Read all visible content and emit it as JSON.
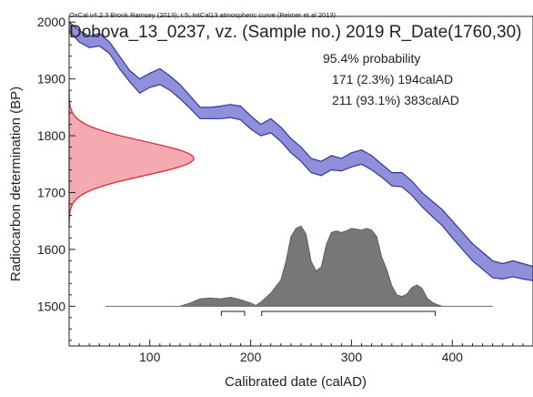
{
  "header_note": "OxCal v4.2.3 Bronk Ramsey (2013); r:5; IntCal13 atmospheric curve (Reimer et al 2013)",
  "title": "Dobova_13_0237, vz. (Sample no.) 2019 R_Date(1760,30)",
  "probability": {
    "heading": "95.4% probability",
    "ranges": [
      "171 (2.3%) 194calAD",
      "211 (93.1%) 383calAD"
    ]
  },
  "colors": {
    "curve_fill": "#8f8fdc",
    "curve_line": "#2b3a9a",
    "radiocarbon_fill": "#f4aab0",
    "radiocarbon_line": "#e0202a",
    "calibrated_fill": "#777777",
    "calibrated_line": "#555555"
  },
  "chart_data": {
    "type": "area",
    "xlabel": "Calibrated date (calAD)",
    "ylabel": "Radiocarbon determination (BP)",
    "xlim": [
      20,
      480
    ],
    "ylim": [
      1430,
      2010
    ],
    "x_ticks": [
      100,
      200,
      300,
      400
    ],
    "y_ticks": [
      1500,
      1600,
      1700,
      1800,
      1900,
      2000
    ],
    "calibration_curve": {
      "x": [
        20,
        30,
        40,
        50,
        60,
        70,
        80,
        90,
        100,
        110,
        120,
        130,
        140,
        150,
        160,
        170,
        180,
        190,
        200,
        210,
        220,
        230,
        240,
        250,
        260,
        270,
        280,
        290,
        300,
        310,
        320,
        330,
        340,
        350,
        360,
        370,
        380,
        390,
        400,
        410,
        420,
        430,
        440,
        450,
        460,
        470,
        480
      ],
      "upper": [
        2000,
        1985,
        1975,
        1980,
        1965,
        1940,
        1915,
        1900,
        1910,
        1918,
        1905,
        1890,
        1870,
        1850,
        1850,
        1852,
        1855,
        1852,
        1835,
        1820,
        1830,
        1815,
        1795,
        1780,
        1760,
        1755,
        1765,
        1760,
        1770,
        1775,
        1765,
        1750,
        1735,
        1735,
        1720,
        1700,
        1685,
        1670,
        1650,
        1630,
        1610,
        1595,
        1580,
        1575,
        1580,
        1575,
        1570
      ],
      "lower": [
        1985,
        1965,
        1955,
        1958,
        1945,
        1918,
        1895,
        1875,
        1885,
        1890,
        1880,
        1865,
        1848,
        1830,
        1830,
        1830,
        1832,
        1828,
        1812,
        1800,
        1805,
        1790,
        1770,
        1755,
        1735,
        1730,
        1740,
        1738,
        1745,
        1750,
        1740,
        1727,
        1712,
        1710,
        1695,
        1675,
        1658,
        1642,
        1620,
        1600,
        1580,
        1565,
        1550,
        1548,
        1552,
        1548,
        1545
      ]
    },
    "radiocarbon_date": {
      "mean": 1760,
      "sd": 30
    },
    "calibrated_distribution": {
      "x": [
        56,
        100,
        130,
        140,
        150,
        160,
        170,
        180,
        190,
        200,
        205,
        210,
        220,
        230,
        235,
        240,
        245,
        250,
        255,
        260,
        265,
        270,
        275,
        280,
        285,
        290,
        295,
        300,
        305,
        310,
        315,
        320,
        325,
        330,
        335,
        340,
        345,
        350,
        355,
        360,
        365,
        370,
        375,
        380,
        385,
        390,
        400,
        440
      ],
      "density": [
        0,
        0,
        0,
        0.04,
        0.09,
        0.1,
        0.09,
        0.11,
        0.08,
        0.04,
        0.01,
        0.05,
        0.16,
        0.32,
        0.55,
        0.85,
        0.95,
        0.98,
        0.88,
        0.55,
        0.43,
        0.48,
        0.75,
        0.9,
        0.92,
        0.9,
        0.92,
        0.95,
        0.94,
        0.93,
        0.95,
        0.93,
        0.85,
        0.6,
        0.45,
        0.25,
        0.14,
        0.12,
        0.15,
        0.23,
        0.26,
        0.22,
        0.1,
        0.05,
        0.02,
        0,
        0,
        0
      ]
    },
    "range_bars": [
      {
        "from": 171,
        "to": 194
      },
      {
        "from": 211,
        "to": 383
      }
    ]
  }
}
